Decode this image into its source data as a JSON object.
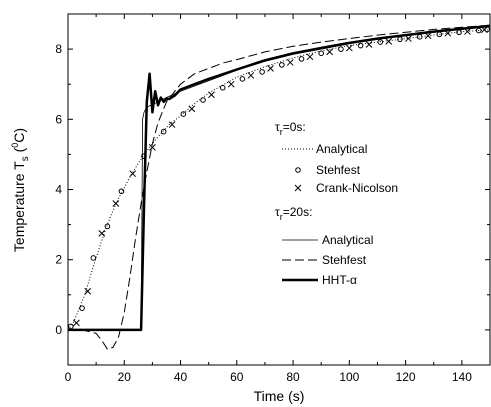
{
  "chart_data": {
    "type": "line",
    "xlabel": "Time (s)",
    "ylabel": {
      "main": "Temperature T",
      "sub": "s",
      "unit_open": " (",
      "unit_sup": "0",
      "unit_close": "C)"
    },
    "xlim": [
      0,
      150
    ],
    "ylim": [
      -1,
      9
    ],
    "xticks": [
      0,
      20,
      40,
      60,
      80,
      100,
      120,
      140
    ],
    "yticks": [
      0,
      2,
      4,
      6,
      8
    ],
    "grid": false,
    "legend_position": "center-right",
    "legend": {
      "groups": [
        {
          "title": {
            "main": "τ",
            "sub": "r",
            "rest": "=0s:"
          },
          "entries": [
            "Analytical",
            "Stehfest",
            "Crank-Nicolson"
          ]
        },
        {
          "title": {
            "main": "τ",
            "sub": "r",
            "rest": "=20s:"
          },
          "entries": [
            "Analytical",
            "Stehfest",
            "HHT-α"
          ]
        }
      ]
    },
    "series": [
      {
        "style": "dotted",
        "x": [
          0,
          2,
          4,
          6,
          8,
          10,
          12,
          14,
          16,
          18,
          20,
          22,
          25,
          28,
          32,
          36,
          40,
          45,
          50,
          60,
          70,
          80,
          90,
          100,
          110,
          120,
          130,
          140,
          150
        ],
        "y": [
          0,
          0.22,
          0.62,
          1.0,
          1.55,
          2.05,
          2.55,
          3.0,
          3.4,
          3.75,
          4.05,
          4.35,
          4.75,
          5.1,
          5.5,
          5.85,
          6.1,
          6.45,
          6.75,
          7.2,
          7.5,
          7.75,
          7.95,
          8.1,
          8.2,
          8.3,
          8.4,
          8.5,
          8.55
        ]
      },
      {
        "style": "circles",
        "x": [
          1,
          5,
          9,
          14,
          19,
          27,
          34,
          41,
          48,
          55,
          62,
          69,
          76,
          83,
          90,
          97,
          104,
          111,
          118,
          125,
          132,
          139,
          146,
          149
        ],
        "y": [
          0.1,
          0.62,
          2.05,
          2.95,
          3.95,
          4.95,
          5.65,
          6.15,
          6.55,
          6.9,
          7.15,
          7.35,
          7.55,
          7.72,
          7.88,
          8.0,
          8.1,
          8.2,
          8.28,
          8.35,
          8.42,
          8.48,
          8.53,
          8.56
        ]
      },
      {
        "style": "crosses",
        "x": [
          3,
          7,
          12,
          17,
          23,
          30,
          37,
          44,
          51,
          58,
          65,
          72,
          79,
          86,
          93,
          100,
          107,
          114,
          121,
          128,
          135,
          142,
          148
        ],
        "y": [
          0.2,
          1.1,
          2.75,
          3.6,
          4.45,
          5.2,
          5.85,
          6.3,
          6.7,
          7.0,
          7.25,
          7.45,
          7.62,
          7.78,
          7.92,
          8.03,
          8.13,
          8.22,
          8.3,
          8.38,
          8.45,
          8.5,
          8.55
        ]
      },
      {
        "style": "thin",
        "x": [
          0,
          26,
          26.5,
          27,
          28,
          30,
          32,
          35,
          40,
          45,
          50,
          60,
          70,
          80,
          90,
          100,
          110,
          120,
          130,
          140,
          150
        ],
        "y": [
          0,
          0,
          6.0,
          6.2,
          6.35,
          6.42,
          6.5,
          6.62,
          6.8,
          6.95,
          7.1,
          7.4,
          7.65,
          7.85,
          8.0,
          8.15,
          8.28,
          8.38,
          8.48,
          8.57,
          8.65
        ]
      },
      {
        "style": "dashed",
        "x": [
          0,
          5,
          10,
          12,
          14,
          16,
          18,
          20,
          22,
          24,
          26,
          28,
          30,
          32,
          35,
          38,
          40,
          45,
          50,
          55,
          60,
          70,
          80,
          90,
          100,
          110,
          120,
          130,
          140,
          150
        ],
        "y": [
          0,
          0,
          -0.1,
          -0.3,
          -0.55,
          -0.5,
          -0.2,
          0.5,
          1.5,
          2.6,
          3.6,
          4.5,
          5.3,
          5.9,
          6.5,
          6.8,
          7.0,
          7.3,
          7.45,
          7.6,
          7.7,
          7.92,
          8.08,
          8.2,
          8.3,
          8.4,
          8.48,
          8.56,
          8.62,
          8.68
        ]
      },
      {
        "style": "thick",
        "x": [
          0,
          26,
          27,
          28,
          29,
          30,
          31,
          32,
          33,
          34,
          35,
          36,
          38,
          40,
          45,
          50,
          60,
          70,
          80,
          90,
          100,
          110,
          120,
          130,
          140,
          150
        ],
        "y": [
          0,
          0,
          3.5,
          6.5,
          7.3,
          6.2,
          6.8,
          6.4,
          6.62,
          6.5,
          6.58,
          6.58,
          6.68,
          6.85,
          7.0,
          7.15,
          7.42,
          7.68,
          7.88,
          8.03,
          8.18,
          8.3,
          8.4,
          8.5,
          8.58,
          8.66
        ]
      }
    ]
  }
}
